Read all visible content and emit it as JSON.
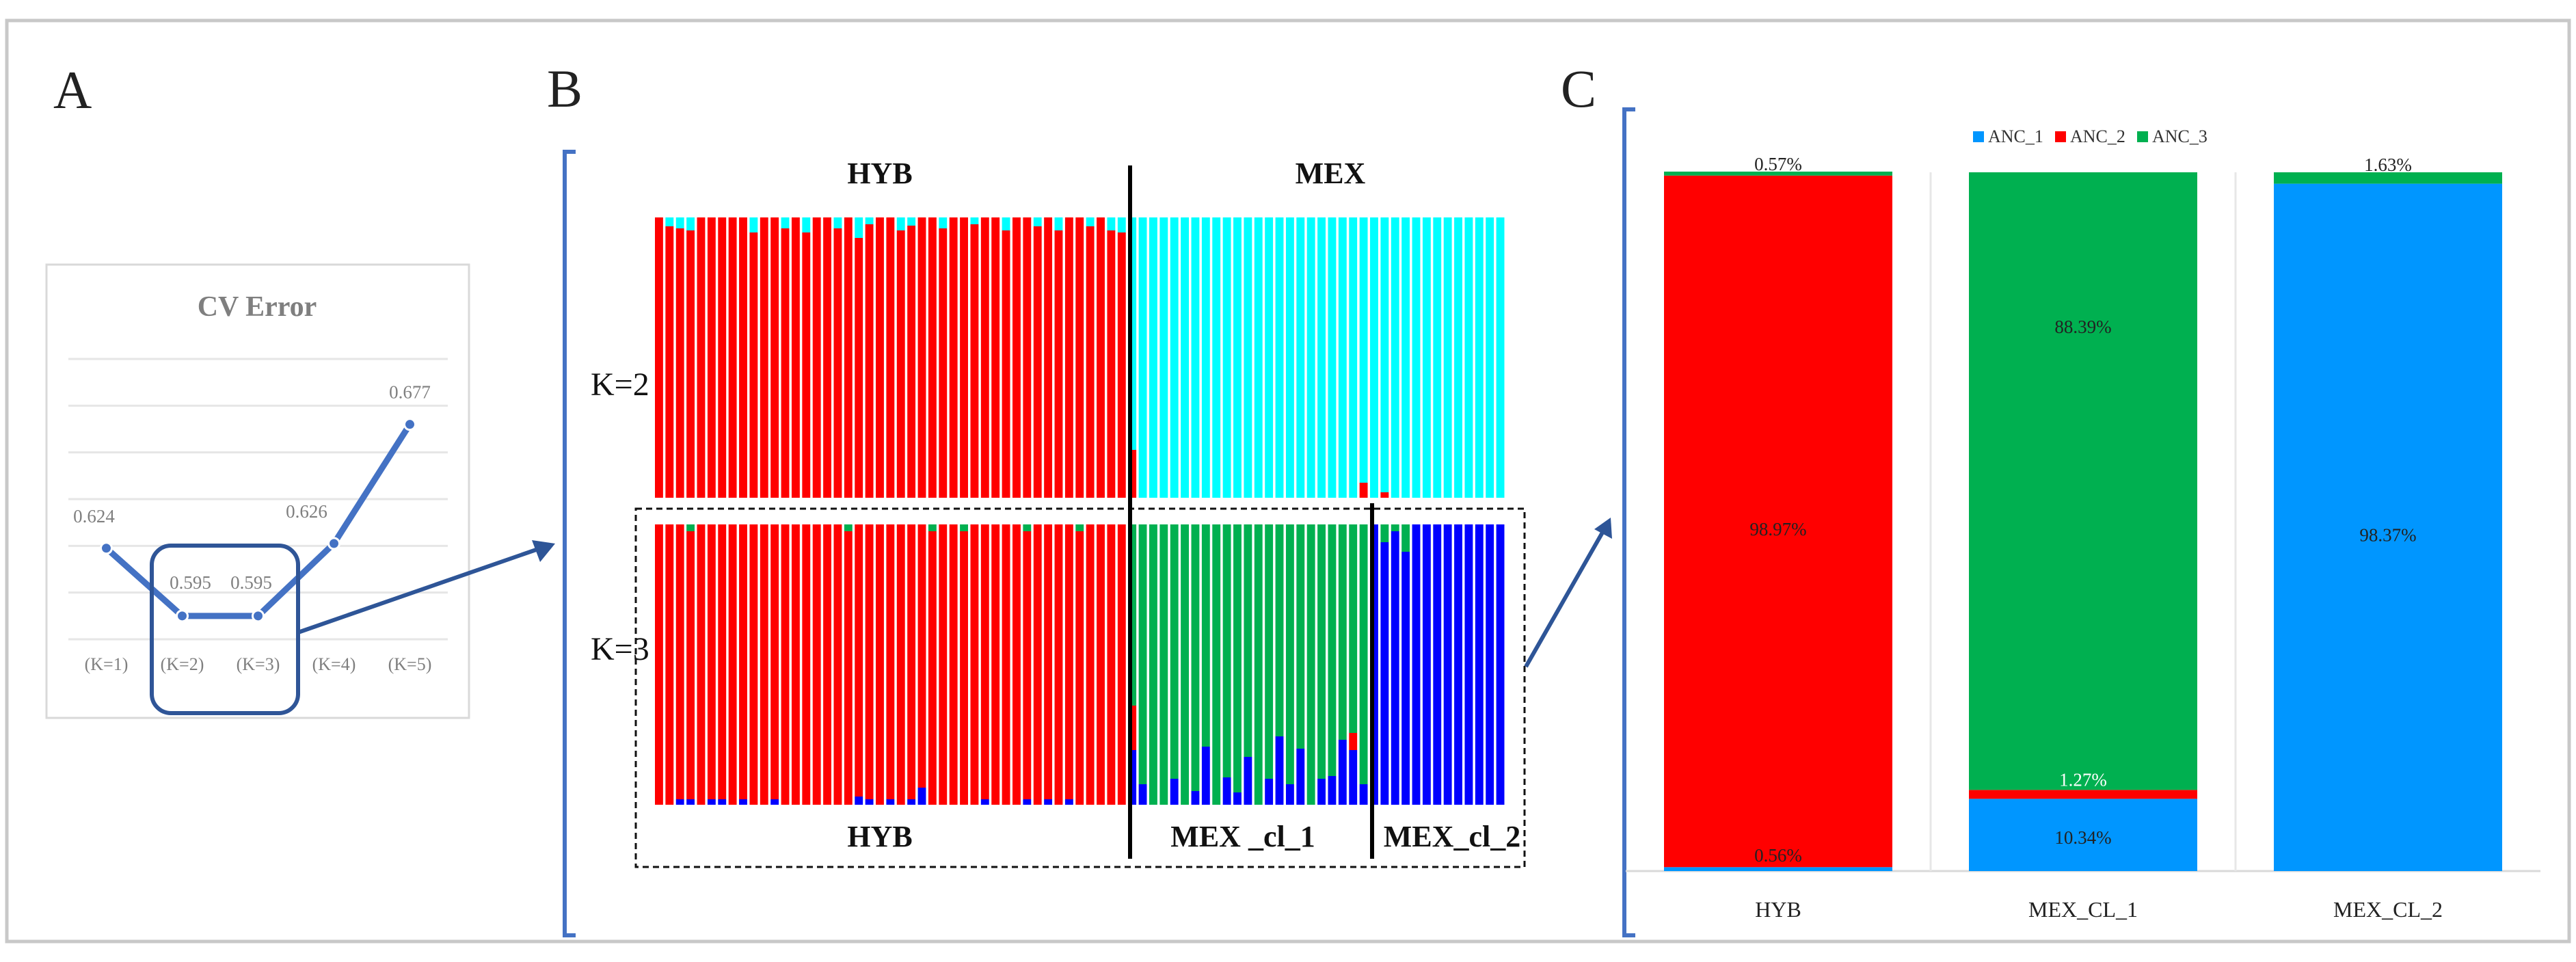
{
  "panels": {
    "a": {
      "letter": "A"
    },
    "b": {
      "letter": "B"
    },
    "c": {
      "letter": "C"
    }
  },
  "colors": {
    "anc_red": "#FF0000",
    "anc_cyan": "#00FFFF",
    "anc_green": "#00B050",
    "anc_blue": "#0000FF",
    "bar_blue": "#0096FF",
    "line_blue": "#4472C4",
    "arrow_blue": "#2E5597"
  },
  "chart_data": [
    {
      "id": "cv_error",
      "type": "line",
      "title": "CV Error",
      "categories": [
        "(K=1)",
        "(K=2)",
        "(K=3)",
        "(K=4)",
        "(K=5)"
      ],
      "values": [
        0.624,
        0.595,
        0.595,
        0.626,
        0.677
      ],
      "labels": [
        "0.624",
        "0.595",
        "0.595",
        "0.626",
        "0.677"
      ],
      "ylim": [
        0.585,
        0.705
      ],
      "grid": true,
      "highlight": [
        "(K=2)",
        "(K=3)"
      ]
    },
    {
      "id": "structure_k2",
      "type": "bar",
      "stacked": true,
      "row_label": "K=2",
      "groups": [
        {
          "label": "HYB",
          "n": 45
        },
        {
          "label": "MEX",
          "n": 36
        }
      ],
      "series": [
        {
          "name": "ANC_1",
          "color": "#00FFFF"
        },
        {
          "name": "ANC_2",
          "color": "#FF0000"
        }
      ]
    },
    {
      "id": "structure_k3",
      "type": "bar",
      "stacked": true,
      "row_label": "K=3",
      "groups": [
        {
          "label": "HYB",
          "n": 45
        },
        {
          "label": "MEX _cl_1",
          "n": 23
        },
        {
          "label": "MEX_cl_2",
          "n": 13
        }
      ],
      "series": [
        {
          "name": "ANC_1",
          "color": "#0000FF"
        },
        {
          "name": "ANC_2",
          "color": "#FF0000"
        },
        {
          "name": "ANC_3",
          "color": "#00B050"
        }
      ]
    },
    {
      "id": "ancestry_proportions",
      "type": "bar",
      "stacked": true,
      "unit": "%",
      "categories": [
        "HYB",
        "MEX_CL_1",
        "MEX_CL_2"
      ],
      "legend": [
        "ANC_1",
        "ANC_2",
        "ANC_3"
      ],
      "legend_position": "top-center",
      "series": [
        {
          "name": "ANC_1",
          "color": "#0096FF",
          "values": [
            0.56,
            10.34,
            98.37
          ],
          "labels": [
            "0.56%",
            "10.34%",
            "98.37%"
          ]
        },
        {
          "name": "ANC_2",
          "color": "#FF0000",
          "values": [
            98.97,
            1.27,
            0.0
          ],
          "labels": [
            "98.97%",
            "1.27%",
            ""
          ]
        },
        {
          "name": "ANC_3",
          "color": "#00B050",
          "values": [
            0.57,
            88.39,
            1.63
          ],
          "labels": [
            "0.57%",
            "88.39%",
            "1.63%"
          ]
        }
      ]
    }
  ]
}
